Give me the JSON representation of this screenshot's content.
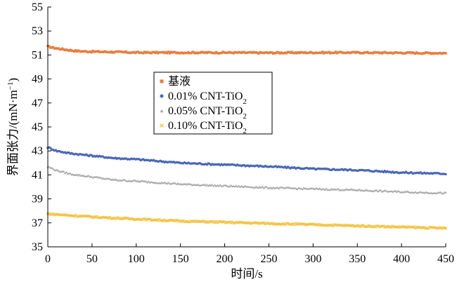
{
  "chart_data": {
    "type": "scatter",
    "title": "",
    "xlabel": "时间/s",
    "ylabel": "界面张力/(mN·m",
    "ylabel_sup": "−1",
    "ylabel_close": ")",
    "xlim": [
      0,
      450
    ],
    "ylim": [
      35,
      55
    ],
    "xticks": [
      "0",
      "50",
      "100",
      "150",
      "200",
      "250",
      "300",
      "350",
      "400",
      "450"
    ],
    "yticks": [
      "35",
      "37",
      "39",
      "41",
      "43",
      "45",
      "47",
      "49",
      "51",
      "53",
      "55"
    ],
    "grid": false,
    "legend_position": "upper-center",
    "series": [
      {
        "name": "基液",
        "name_sub": "",
        "marker": "square",
        "color": "#E87D3E",
        "x": [
          0,
          10,
          20,
          30,
          40,
          50,
          75,
          100,
          150,
          200,
          250,
          300,
          350,
          400,
          450
        ],
        "y": [
          51.7,
          51.55,
          51.45,
          51.35,
          51.3,
          51.28,
          51.25,
          51.2,
          51.2,
          51.2,
          51.18,
          51.2,
          51.2,
          51.18,
          51.15
        ]
      },
      {
        "name": "0.01% CNT-TiO",
        "name_sub": "2",
        "marker": "circle",
        "color": "#4A67B8",
        "x": [
          0,
          10,
          25,
          50,
          75,
          100,
          150,
          200,
          250,
          300,
          350,
          400,
          450
        ],
        "y": [
          43.3,
          43.0,
          42.8,
          42.6,
          42.4,
          42.3,
          42.0,
          41.85,
          41.7,
          41.5,
          41.4,
          41.2,
          41.1
        ]
      },
      {
        "name": "0.05% CNT-TiO",
        "name_sub": "2",
        "marker": "triangle",
        "color": "#A8A8A8",
        "x": [
          0,
          10,
          25,
          50,
          75,
          100,
          150,
          200,
          250,
          300,
          350,
          400,
          450
        ],
        "y": [
          41.7,
          41.4,
          41.1,
          40.85,
          40.6,
          40.5,
          40.25,
          40.1,
          39.95,
          39.85,
          39.75,
          39.6,
          39.5
        ]
      },
      {
        "name": "0.10% CNT-TiO",
        "name_sub": "2",
        "marker": "cross",
        "color": "#F3C341",
        "x": [
          0,
          10,
          25,
          50,
          75,
          100,
          150,
          200,
          250,
          300,
          350,
          400,
          450
        ],
        "y": [
          37.75,
          37.7,
          37.62,
          37.5,
          37.4,
          37.32,
          37.15,
          37.05,
          36.95,
          36.85,
          36.75,
          36.65,
          36.55
        ]
      }
    ]
  }
}
